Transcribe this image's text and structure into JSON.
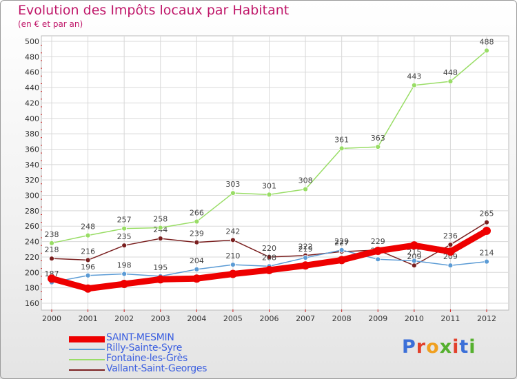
{
  "header": {
    "title": "Evolution des Impôts locaux par Habitant",
    "subtitle": "(en € et par an)"
  },
  "brand": {
    "letters": [
      "P",
      "r",
      "o",
      "x",
      "i",
      "t",
      "i"
    ],
    "colors": [
      "#3b6fd8",
      "#e2402b",
      "#f0a020",
      "#55b02e",
      "#e2402b",
      "#3b6fd8",
      "#55b02e"
    ]
  },
  "chart_data": {
    "type": "line",
    "x": [
      "2000",
      "2001",
      "2002",
      "2003",
      "2004",
      "2005",
      "2006",
      "2007",
      "2008",
      "2009",
      "2010",
      "2011",
      "2012"
    ],
    "ylim": [
      160,
      500
    ],
    "yticks": [
      160,
      180,
      200,
      220,
      240,
      260,
      280,
      300,
      320,
      340,
      360,
      380,
      400,
      420,
      440,
      460,
      480,
      500
    ],
    "grid": true,
    "legend_position": "bottom-left",
    "series": [
      {
        "name": "SAINT-MESMIN",
        "color": "#ee0000",
        "values": [
          192,
          179,
          185,
          191,
          192,
          198,
          203,
          209,
          216,
          228,
          235,
          227,
          254
        ],
        "show_labels": false
      },
      {
        "name": "Rilly-Sainte-Syre",
        "color": "#5b9bd5",
        "values": [
          187,
          196,
          198,
          195,
          204,
          210,
          208,
          219,
          229,
          217,
          215,
          209,
          214
        ],
        "show_labels": true
      },
      {
        "name": "Fontaine-les-Grès",
        "color": "#99dd66",
        "values": [
          238,
          248,
          257,
          258,
          266,
          303,
          301,
          308,
          361,
          363,
          443,
          448,
          488
        ],
        "show_labels": true
      },
      {
        "name": "Vallant-Saint-Georges",
        "color": "#7a1f1f",
        "values": [
          218,
          216,
          235,
          244,
          239,
          242,
          220,
          222,
          227,
          229,
          209,
          236,
          265
        ],
        "show_labels": true
      }
    ]
  }
}
